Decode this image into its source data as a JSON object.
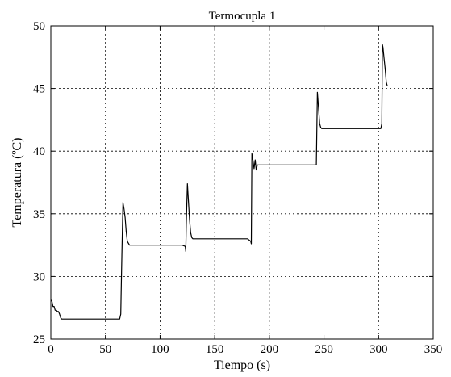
{
  "chart_data": {
    "type": "line",
    "title": "Termocupla 1",
    "xlabel": "Tiempo (s)",
    "ylabel": "Temperatura (ºC)",
    "xlim": [
      0,
      350
    ],
    "ylim": [
      25,
      50
    ],
    "xticks": [
      0,
      50,
      100,
      150,
      200,
      250,
      300,
      350
    ],
    "yticks": [
      25,
      30,
      35,
      40,
      45,
      50
    ],
    "grid": true,
    "series": [
      {
        "color": "#000000",
        "x": [
          0,
          1,
          2,
          3,
          4,
          5,
          6,
          7,
          8,
          9,
          10,
          12,
          20,
          40,
          60,
          63,
          64,
          64.5,
          65,
          66,
          67,
          68,
          69,
          70,
          72,
          80,
          100,
          110,
          120,
          123,
          123.5,
          124,
          125,
          126,
          127,
          128,
          129,
          130,
          132,
          140,
          160,
          180,
          183,
          183.5,
          184,
          185,
          186,
          187,
          188,
          189,
          190,
          192,
          200,
          220,
          240,
          243,
          243.5,
          244,
          245,
          246,
          247,
          248,
          249,
          250,
          260,
          280,
          300,
          302,
          303,
          303.5,
          304,
          305,
          306,
          307,
          308
        ],
        "y": [
          28.2,
          28.0,
          27.6,
          27.6,
          27.3,
          27.3,
          27.2,
          27.2,
          27.0,
          26.7,
          26.6,
          26.6,
          26.6,
          26.6,
          26.6,
          26.6,
          27.0,
          29.5,
          31.5,
          35.9,
          35.4,
          34.7,
          33.6,
          32.8,
          32.5,
          32.5,
          32.5,
          32.5,
          32.5,
          32.4,
          32.0,
          34.2,
          37.4,
          36.0,
          34.5,
          33.5,
          33.1,
          33.0,
          33.0,
          33.0,
          33.0,
          33.0,
          32.8,
          32.6,
          39.8,
          39.3,
          38.6,
          39.3,
          38.5,
          38.9,
          38.9,
          38.9,
          38.9,
          38.9,
          38.9,
          38.9,
          42.0,
          44.7,
          43.5,
          42.2,
          41.9,
          41.8,
          41.8,
          41.8,
          41.8,
          41.8,
          41.8,
          41.8,
          42.2,
          48.5,
          48.3,
          47.4,
          46.6,
          45.5,
          45.2
        ]
      }
    ]
  }
}
